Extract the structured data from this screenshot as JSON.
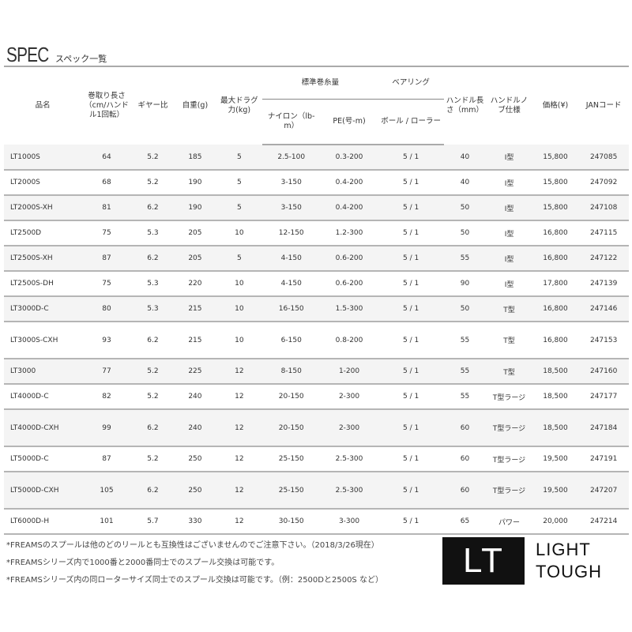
{
  "title": {
    "main": "SPEC",
    "sub": "スペック一覧"
  },
  "headers": {
    "name": "品名",
    "retrieve": "巻取り長さ（cm/ハンドル1回転）",
    "gear": "ギヤー比",
    "weight": "自重(g)",
    "drag": "最大ドラグ力(kg)",
    "capacity": "標準巻糸量",
    "nylon": "ナイロン（lb-m）",
    "pe": "PE(号-m)",
    "bearing": "ベアリング",
    "bearing_sub": "ボール / ローラー",
    "handle_len": "ハンドル長さ（mm）",
    "knob": "ハンドルノブ仕様",
    "price": "価格(¥)",
    "jan": "JANコード"
  },
  "rows": [
    [
      "LT1000S",
      "64",
      "5.2",
      "185",
      "5",
      "2.5-100",
      "0.3-200",
      "5 / 1",
      "40",
      "I型",
      "15,800",
      "247085"
    ],
    [
      "LT2000S",
      "68",
      "5.2",
      "190",
      "5",
      "3-150",
      "0.4-200",
      "5 / 1",
      "40",
      "I型",
      "15,800",
      "247092"
    ],
    [
      "LT2000S-XH",
      "81",
      "6.2",
      "190",
      "5",
      "3-150",
      "0.4-200",
      "5 / 1",
      "50",
      "I型",
      "15,800",
      "247108"
    ],
    [
      "LT2500D",
      "75",
      "5.3",
      "205",
      "10",
      "12-150",
      "1.2-300",
      "5 / 1",
      "50",
      "I型",
      "16,800",
      "247115"
    ],
    [
      "LT2500S-XH",
      "87",
      "6.2",
      "205",
      "5",
      "4-150",
      "0.6-200",
      "5 / 1",
      "55",
      "I型",
      "16,800",
      "247122"
    ],
    [
      "LT2500S-DH",
      "75",
      "5.3",
      "220",
      "10",
      "4-150",
      "0.6-200",
      "5 / 1",
      "90",
      "I型",
      "17,800",
      "247139"
    ],
    [
      "LT3000D-C",
      "80",
      "5.3",
      "215",
      "10",
      "16-150",
      "1.5-300",
      "5 / 1",
      "50",
      "T型",
      "16,800",
      "247146"
    ],
    [
      "LT3000S-CXH",
      "93",
      "6.2",
      "215",
      "10",
      "6-150",
      "0.8-200",
      "5 / 1",
      "55",
      "T型",
      "16,800",
      "247153"
    ],
    [
      "LT3000",
      "77",
      "5.2",
      "225",
      "12",
      "8-150",
      "1-200",
      "5 / 1",
      "55",
      "T型",
      "18,500",
      "247160"
    ],
    [
      "LT4000D-C",
      "82",
      "5.2",
      "240",
      "12",
      "20-150",
      "2-300",
      "5 / 1",
      "55",
      "T型ラージ",
      "18,500",
      "247177"
    ],
    [
      "LT4000D-CXH",
      "99",
      "6.2",
      "240",
      "12",
      "20-150",
      "2-300",
      "5 / 1",
      "60",
      "T型ラージ",
      "18,500",
      "247184"
    ],
    [
      "LT5000D-C",
      "87",
      "5.2",
      "250",
      "12",
      "25-150",
      "2.5-300",
      "5 / 1",
      "60",
      "T型ラージ",
      "19,500",
      "247191"
    ],
    [
      "LT5000D-CXH",
      "105",
      "6.2",
      "250",
      "12",
      "25-150",
      "2.5-300",
      "5 / 1",
      "60",
      "T型ラージ",
      "19,500",
      "247207"
    ],
    [
      "LT6000D-H",
      "101",
      "5.7",
      "330",
      "12",
      "30-150",
      "3-300",
      "5 / 1",
      "65",
      "パワー",
      "20,000",
      "247214"
    ]
  ],
  "notes": [
    "*FREAMSのスプールは他のどのリールとも互換性はございませんのでご注意下さい。（2018/3/26現在）",
    "*FREAMSシリーズ内で1000番と2000番同士でのスプール交換は可能です。",
    "*FREAMSシリーズ内の同ローターサイズ同士でのスプール交換は可能です。（例：2500Dと2500S など）"
  ],
  "logo": {
    "mark": "LT",
    "line1": "LIGHT",
    "line2": "TOUGH"
  }
}
